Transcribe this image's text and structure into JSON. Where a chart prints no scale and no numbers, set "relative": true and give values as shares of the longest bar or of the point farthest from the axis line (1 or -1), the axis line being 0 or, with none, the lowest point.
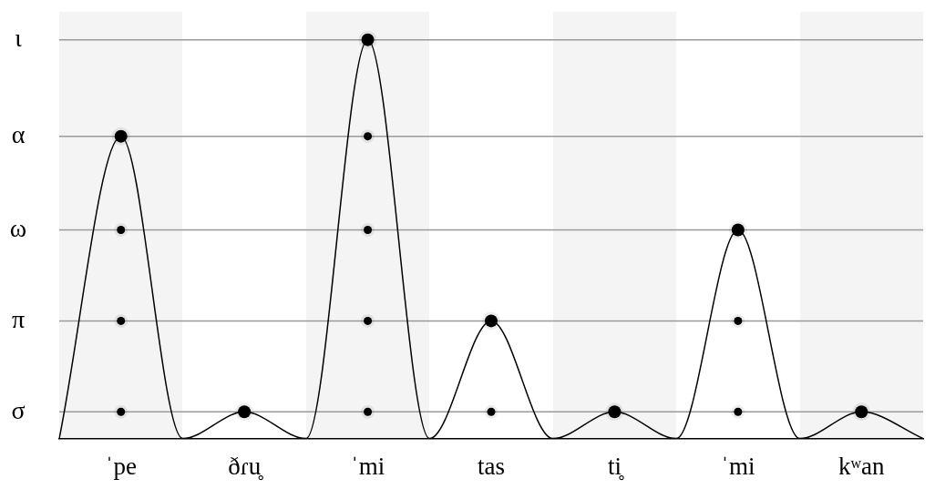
{
  "chart_data": {
    "type": "line",
    "relative": true,
    "legend": false,
    "line_style": "solid",
    "categories": [
      null,
      "ˈpe",
      null,
      "ðɾu̥",
      null,
      "ˈmi",
      null,
      "tas",
      null,
      "ti̥",
      null,
      "ˈmi",
      null,
      "kʷan",
      null
    ],
    "ref_lines": [
      {
        "axis": "y",
        "value": 0.067,
        "label": "σ"
      },
      {
        "axis": "y",
        "value": 0.295,
        "label": "π"
      },
      {
        "axis": "y",
        "value": 0.523,
        "label": "ω"
      },
      {
        "axis": "y",
        "value": 0.758,
        "label": "α"
      },
      {
        "axis": "y",
        "value": 1,
        "label": "ι"
      }
    ],
    "series": [
      {
        "color": "#000000",
        "values": [
          0,
          0.758,
          0,
          0.067,
          0,
          1,
          0,
          0.295,
          0,
          0.067,
          0,
          0.523,
          0,
          0.067,
          0
        ]
      },
      {
        "type": "scatter",
        "marker": "circle",
        "color": "#000000",
        "values": [
          null,
          0.758,
          null,
          0.067,
          null,
          1,
          null,
          0.295,
          null,
          0.067,
          null,
          0.523,
          null,
          0.067,
          null
        ]
      },
      {
        "type": "scatter",
        "marker": "circle",
        "color": "#000000",
        "values": [
          null,
          0.067,
          null,
          null,
          null,
          0.067,
          null,
          0.067,
          null,
          null,
          null,
          0.067,
          null,
          null,
          null
        ]
      },
      {
        "type": "scatter",
        "marker": "circle",
        "color": "#000000",
        "values": [
          null,
          0.295,
          null,
          null,
          null,
          0.295,
          null,
          null,
          null,
          null,
          null,
          0.295,
          null,
          null,
          null
        ]
      },
      {
        "type": "scatter",
        "marker": "circle",
        "color": "#000000",
        "values": [
          null,
          0.523,
          null,
          null,
          null,
          0.523,
          null,
          null,
          null,
          null,
          null,
          null,
          null,
          null,
          null
        ]
      },
      {
        "type": "scatter",
        "marker": "circle",
        "color": "#000000",
        "values": [
          null,
          null,
          null,
          null,
          null,
          0.758,
          null,
          null,
          null,
          null,
          null,
          null,
          null,
          null,
          null
        ]
      }
    ]
  }
}
